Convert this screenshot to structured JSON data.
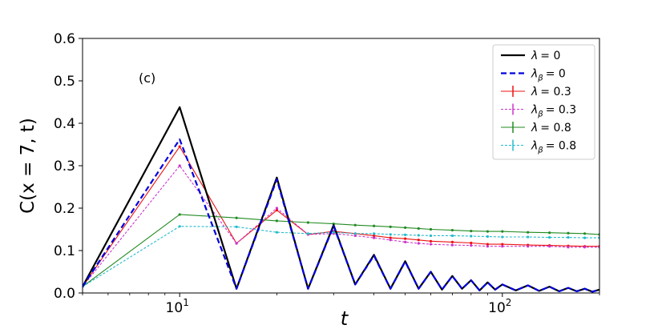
{
  "chart_data": {
    "type": "line",
    "panel_label": "(c)",
    "xlabel": "t",
    "ylabel": "C(x = 7, t)",
    "xscale": "log",
    "xlim": [
      5,
      200
    ],
    "ylim": [
      0,
      0.6
    ],
    "x_ticks": [
      {
        "value": 10,
        "base": "10",
        "exp": "1"
      },
      {
        "value": 100,
        "base": "10",
        "exp": "2"
      }
    ],
    "y_ticks": [
      "0.0",
      "0.1",
      "0.2",
      "0.3",
      "0.4",
      "0.5",
      "0.6"
    ],
    "grid": false,
    "legend_position": "top-right",
    "series": [
      {
        "name_main": "λ",
        "name_sub": "",
        "name_value": "= 0",
        "color": "#000000",
        "style": "solid",
        "width": 2.2,
        "markers": false,
        "x": [
          5,
          10,
          15,
          20,
          25,
          30,
          35,
          40,
          45,
          50,
          55,
          60,
          65,
          70,
          75,
          80,
          85,
          90,
          95,
          100,
          110,
          120,
          130,
          140,
          150,
          160,
          170,
          180,
          190,
          200
        ],
        "y": [
          0.015,
          0.438,
          0.01,
          0.272,
          0.01,
          0.16,
          0.02,
          0.09,
          0.01,
          0.075,
          0.01,
          0.05,
          0.008,
          0.04,
          0.01,
          0.03,
          0.006,
          0.025,
          0.008,
          0.02,
          0.006,
          0.018,
          0.005,
          0.015,
          0.004,
          0.012,
          0.004,
          0.01,
          0.003,
          0.008
        ]
      },
      {
        "name_main": "λ",
        "name_sub": "β",
        "name_value": "= 0",
        "color": "#0000dd",
        "style": "dashed",
        "width": 2.2,
        "markers": false,
        "x": [
          5,
          10,
          15,
          20,
          25,
          30,
          35,
          40,
          45,
          50,
          55,
          60,
          65,
          70,
          75,
          80,
          85,
          90,
          95,
          100,
          110,
          120,
          130,
          140,
          150,
          160,
          170,
          180,
          190,
          200
        ],
        "y": [
          0.015,
          0.362,
          0.01,
          0.268,
          0.01,
          0.158,
          0.02,
          0.088,
          0.01,
          0.074,
          0.01,
          0.05,
          0.008,
          0.04,
          0.01,
          0.03,
          0.006,
          0.025,
          0.008,
          0.02,
          0.006,
          0.018,
          0.005,
          0.015,
          0.004,
          0.012,
          0.004,
          0.01,
          0.003,
          0.008
        ]
      },
      {
        "name_main": "λ",
        "name_sub": "",
        "name_value": "= 0.3",
        "color": "#ee1111",
        "style": "solid",
        "width": 1.1,
        "markers": true,
        "x": [
          5,
          10,
          15,
          20,
          25,
          30,
          35,
          40,
          45,
          50,
          55,
          60,
          70,
          80,
          90,
          100,
          120,
          140,
          160,
          180,
          200
        ],
        "y": [
          0.015,
          0.345,
          0.117,
          0.195,
          0.138,
          0.145,
          0.14,
          0.135,
          0.13,
          0.128,
          0.125,
          0.122,
          0.12,
          0.118,
          0.115,
          0.115,
          0.113,
          0.112,
          0.111,
          0.11,
          0.11
        ]
      },
      {
        "name_main": "λ",
        "name_sub": "β",
        "name_value": "= 0.3",
        "color": "#cc33cc",
        "style": "dashed",
        "width": 1.1,
        "markers": true,
        "x": [
          5,
          10,
          15,
          20,
          25,
          30,
          35,
          40,
          45,
          50,
          55,
          60,
          70,
          80,
          90,
          100,
          120,
          140,
          160,
          180,
          200
        ],
        "y": [
          0.015,
          0.3,
          0.117,
          0.2,
          0.138,
          0.14,
          0.135,
          0.13,
          0.125,
          0.12,
          0.117,
          0.115,
          0.113,
          0.112,
          0.11,
          0.11,
          0.11,
          0.11,
          0.108,
          0.108,
          0.108
        ]
      },
      {
        "name_main": "λ",
        "name_sub": "",
        "name_value": "= 0.8",
        "color": "#228b22",
        "style": "solid",
        "width": 1.1,
        "markers": true,
        "x": [
          5,
          10,
          15,
          20,
          25,
          30,
          35,
          40,
          45,
          50,
          55,
          60,
          70,
          80,
          90,
          100,
          120,
          140,
          160,
          180,
          200
        ],
        "y": [
          0.015,
          0.185,
          0.177,
          0.17,
          0.166,
          0.163,
          0.16,
          0.158,
          0.156,
          0.154,
          0.152,
          0.15,
          0.148,
          0.146,
          0.145,
          0.145,
          0.143,
          0.142,
          0.141,
          0.14,
          0.138
        ]
      },
      {
        "name_main": "λ",
        "name_sub": "β",
        "name_value": "= 0.8",
        "color": "#22bbcc",
        "style": "dashed",
        "width": 1.1,
        "markers": true,
        "x": [
          5,
          10,
          15,
          20,
          25,
          30,
          35,
          40,
          45,
          50,
          55,
          60,
          70,
          80,
          90,
          100,
          120,
          140,
          160,
          180,
          200
        ],
        "y": [
          0.015,
          0.157,
          0.156,
          0.143,
          0.14,
          0.143,
          0.14,
          0.14,
          0.138,
          0.137,
          0.136,
          0.135,
          0.135,
          0.134,
          0.133,
          0.132,
          0.132,
          0.131,
          0.131,
          0.13,
          0.13
        ]
      }
    ]
  }
}
